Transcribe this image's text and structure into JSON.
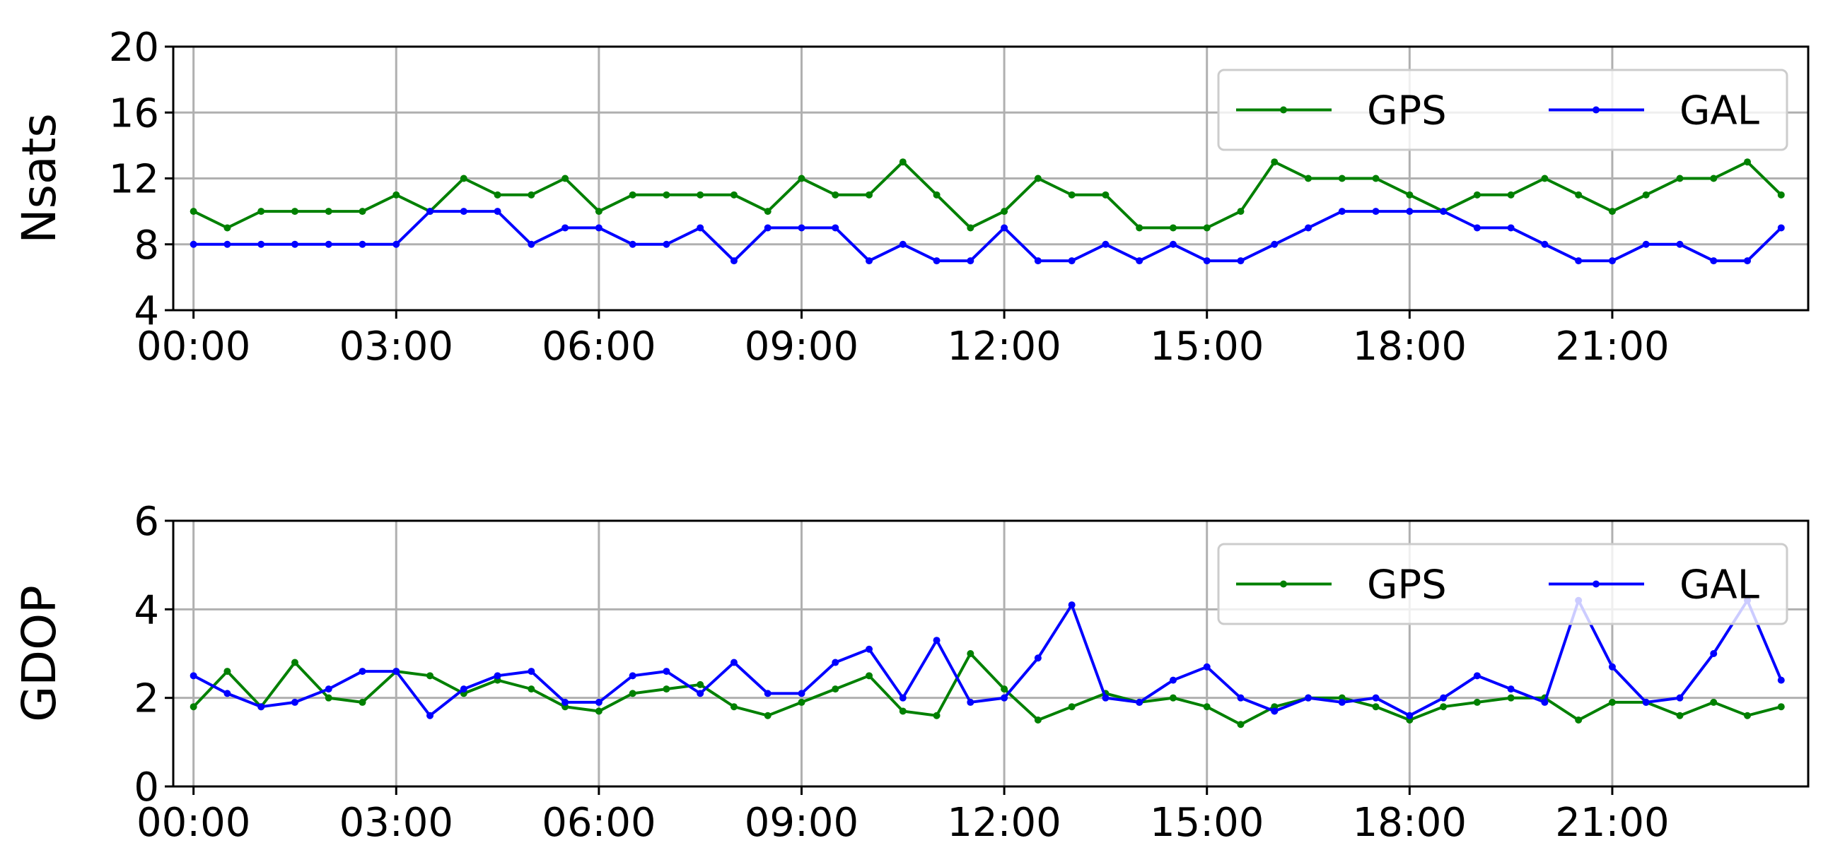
{
  "chart_data": [
    {
      "type": "line",
      "ylabel": "Nsats",
      "x": [
        0,
        0.5,
        1,
        1.5,
        2,
        2.5,
        3,
        3.5,
        4,
        4.5,
        5,
        5.5,
        6,
        6.5,
        7,
        7.5,
        8,
        8.5,
        9,
        9.5,
        10,
        10.5,
        11,
        11.5,
        12,
        12.5,
        13,
        13.5,
        14,
        14.5,
        15,
        15.5,
        16,
        16.5,
        17,
        17.5,
        18,
        18.5,
        19,
        19.5,
        20,
        20.5,
        21,
        21.5,
        22,
        22.5,
        23,
        23.5
      ],
      "series": [
        {
          "name": "GPS",
          "color": "#008000",
          "values": [
            10,
            9,
            10,
            10,
            10,
            10,
            11,
            10,
            12,
            11,
            11,
            12,
            10,
            11,
            11,
            11,
            11,
            10,
            12,
            11,
            11,
            13,
            11,
            9,
            10,
            12,
            11,
            11,
            9,
            9,
            9,
            10,
            13,
            12,
            12,
            12,
            11,
            10,
            11,
            11,
            12,
            11,
            10,
            11,
            12,
            12,
            13,
            11
          ]
        },
        {
          "name": "GAL",
          "color": "#0000ff",
          "values": [
            8,
            8,
            8,
            8,
            8,
            8,
            8,
            10,
            10,
            10,
            8,
            9,
            9,
            8,
            8,
            9,
            7,
            9,
            9,
            9,
            7,
            8,
            7,
            7,
            9,
            7,
            7,
            8,
            7,
            8,
            7,
            7,
            8,
            9,
            10,
            10,
            10,
            10,
            9,
            9,
            8,
            7,
            7,
            8,
            8,
            7,
            7,
            9
          ]
        }
      ],
      "xlim": [
        -0.3,
        23.9
      ],
      "xticks": [
        {
          "value": 0,
          "label": "00:00"
        },
        {
          "value": 3,
          "label": "03:00"
        },
        {
          "value": 6,
          "label": "06:00"
        },
        {
          "value": 9,
          "label": "09:00"
        },
        {
          "value": 12,
          "label": "12:00"
        },
        {
          "value": 15,
          "label": "15:00"
        },
        {
          "value": 18,
          "label": "18:00"
        },
        {
          "value": 21,
          "label": "21:00"
        }
      ],
      "ylim": [
        4,
        20
      ],
      "yticks": [
        4,
        8,
        12,
        16,
        20
      ],
      "grid": true,
      "legend": "upper-right"
    },
    {
      "type": "line",
      "ylabel": "GDOP",
      "x": [
        0,
        0.5,
        1,
        1.5,
        2,
        2.5,
        3,
        3.5,
        4,
        4.5,
        5,
        5.5,
        6,
        6.5,
        7,
        7.5,
        8,
        8.5,
        9,
        9.5,
        10,
        10.5,
        11,
        11.5,
        12,
        12.5,
        13,
        13.5,
        14,
        14.5,
        15,
        15.5,
        16,
        16.5,
        17,
        17.5,
        18,
        18.5,
        19,
        19.5,
        20,
        20.5,
        21,
        21.5,
        22,
        22.5,
        23,
        23.5
      ],
      "series": [
        {
          "name": "GPS",
          "color": "#008000",
          "values": [
            1.8,
            2.6,
            1.8,
            2.8,
            2.0,
            1.9,
            2.6,
            2.5,
            2.1,
            2.4,
            2.2,
            1.8,
            1.7,
            2.1,
            2.2,
            2.3,
            1.8,
            1.6,
            1.9,
            2.2,
            2.5,
            1.7,
            1.6,
            3.0,
            2.2,
            1.5,
            1.8,
            2.1,
            1.9,
            2.0,
            1.8,
            1.4,
            1.8,
            2.0,
            2.0,
            1.8,
            1.5,
            1.8,
            1.9,
            2.0,
            2.0,
            1.5,
            1.9,
            1.9,
            1.6,
            1.9,
            1.6,
            1.8
          ]
        },
        {
          "name": "GAL",
          "color": "#0000ff",
          "values": [
            2.5,
            2.1,
            1.8,
            1.9,
            2.2,
            2.6,
            2.6,
            1.6,
            2.2,
            2.5,
            2.6,
            1.9,
            1.9,
            2.5,
            2.6,
            2.1,
            2.8,
            2.1,
            2.1,
            2.8,
            3.1,
            2.0,
            3.3,
            1.9,
            2.0,
            2.9,
            4.1,
            2.0,
            1.9,
            2.4,
            2.7,
            2.0,
            1.7,
            2.0,
            1.9,
            2.0,
            1.6,
            2.0,
            2.5,
            2.2,
            1.9,
            4.2,
            2.7,
            1.9,
            2.0,
            3.0,
            4.2,
            2.4
          ]
        }
      ],
      "xlim": [
        -0.3,
        23.9
      ],
      "xticks": [
        {
          "value": 0,
          "label": "00:00"
        },
        {
          "value": 3,
          "label": "03:00"
        },
        {
          "value": 6,
          "label": "06:00"
        },
        {
          "value": 9,
          "label": "09:00"
        },
        {
          "value": 12,
          "label": "12:00"
        },
        {
          "value": 15,
          "label": "15:00"
        },
        {
          "value": 18,
          "label": "18:00"
        },
        {
          "value": 21,
          "label": "21:00"
        }
      ],
      "ylim": [
        0,
        6
      ],
      "yticks": [
        0,
        2,
        4,
        6
      ],
      "grid": true,
      "legend": "upper-right"
    }
  ]
}
